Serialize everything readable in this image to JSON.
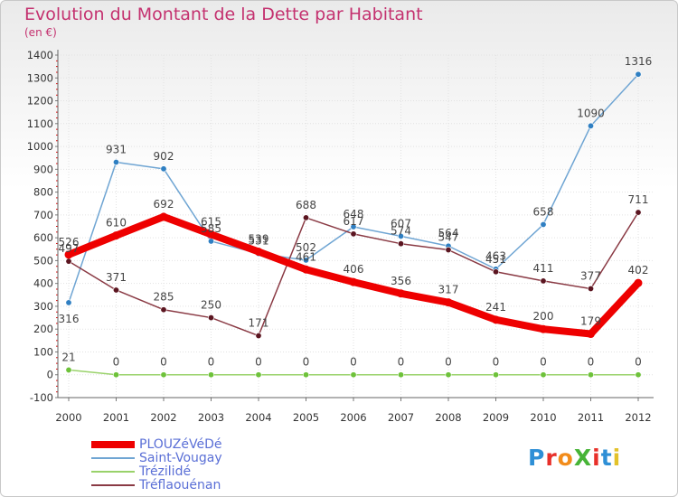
{
  "header": {
    "title": "Evolution du Montant de la Dette par Habitant",
    "subtitle": "(en €)"
  },
  "logo": {
    "text": "ProXiti",
    "letters": [
      "P",
      "r",
      "o",
      "X",
      "i",
      "t",
      "i"
    ],
    "colors": [
      "#2e8fd6",
      "#e8302a",
      "#f28c1b",
      "#47b437",
      "#e8302a",
      "#2e8fd6",
      "#e3c22a"
    ]
  },
  "chart_data": {
    "type": "line",
    "title": "Evolution du Montant de la Dette par Habitant",
    "ylabel": "(en €)",
    "xlabel": "",
    "x": [
      "2000",
      "2001",
      "2002",
      "2003",
      "2004",
      "2005",
      "2006",
      "2007",
      "2008",
      "2009",
      "2010",
      "2011",
      "2012"
    ],
    "ylim": [
      -100,
      1400
    ],
    "yticks": [
      -100,
      0,
      100,
      200,
      300,
      400,
      500,
      600,
      700,
      800,
      900,
      1000,
      1100,
      1200,
      1300,
      1400
    ],
    "grid": true,
    "legend_position": "bottom-left",
    "series": [
      {
        "name": "PLOUZéVéDé",
        "color": "#ee0000",
        "marker": "#ee0000",
        "width": 8,
        "labelDy": [
          -10,
          -10,
          -10,
          -10,
          -10,
          -10,
          -10,
          -10,
          -10,
          -10,
          -10,
          -10,
          -10
        ],
        "values": [
          526,
          610,
          692,
          615,
          539,
          461,
          406,
          356,
          317,
          241,
          200,
          179,
          402
        ]
      },
      {
        "name": "Saint-Vougay",
        "color": "#6fa5d3",
        "marker": "#2f7fc2",
        "width": 1.5,
        "labelDy": [
          8,
          -10,
          -10,
          -10,
          -10,
          -10,
          -10,
          -10,
          -10,
          -10,
          -10,
          -10,
          -10
        ],
        "values": [
          316,
          931,
          902,
          585,
          531,
          502,
          648,
          607,
          564,
          463,
          658,
          1090,
          1316
        ]
      },
      {
        "name": "Trézilidé",
        "color": "#99d26a",
        "marker": "#6ec23a",
        "width": 1.5,
        "labelDy": [
          -10,
          -10,
          -10,
          -10,
          -10,
          -10,
          -10,
          -10,
          -10,
          -10,
          -10,
          -10,
          -10
        ],
        "values": [
          21,
          0,
          0,
          0,
          0,
          0,
          0,
          0,
          0,
          0,
          0,
          0,
          0
        ]
      },
      {
        "name": "Tréflaouénan",
        "color": "#8a3a44",
        "marker": "#5b1520",
        "width": 1.5,
        "labelDy": [
          -10,
          -10,
          -10,
          -10,
          -10,
          -10,
          -10,
          -10,
          -10,
          -10,
          -10,
          -10,
          -10
        ],
        "values": [
          497,
          371,
          285,
          250,
          171,
          688,
          617,
          574,
          547,
          451,
          411,
          377,
          711
        ]
      }
    ]
  }
}
